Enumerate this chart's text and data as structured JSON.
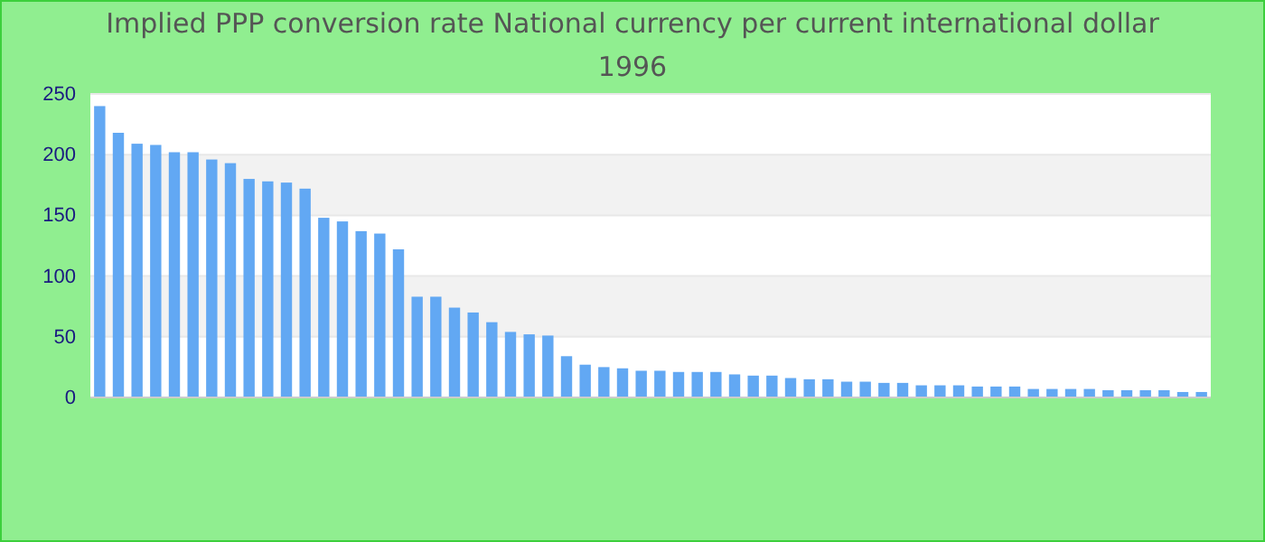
{
  "chart_data": {
    "type": "bar",
    "title": "Implied PPP conversion rate  National currency per current international dollar",
    "subtitle": "1996",
    "categories": [
      null,
      null,
      null,
      null,
      null,
      null,
      null,
      null,
      null,
      null,
      null,
      null,
      null,
      null,
      null,
      null,
      null,
      null,
      null,
      null,
      null,
      null,
      null,
      null,
      null,
      null,
      null,
      null,
      null,
      null,
      null,
      null,
      null,
      null,
      null,
      null,
      null,
      null,
      null,
      null,
      null,
      null,
      null,
      null,
      null,
      null,
      null,
      null,
      null,
      null,
      null,
      null,
      null,
      null,
      null,
      null,
      null,
      null,
      null,
      null
    ],
    "values": [
      240,
      218,
      209,
      208,
      202,
      202,
      196,
      193,
      180,
      178,
      177,
      172,
      148,
      145,
      137,
      135,
      122,
      83,
      83,
      74,
      70,
      62,
      54,
      52,
      51,
      34,
      27,
      25,
      24,
      22,
      22,
      21,
      21,
      21,
      19,
      18,
      18,
      16,
      15,
      15,
      13,
      13,
      12,
      12,
      10,
      10,
      10,
      9,
      9,
      9,
      7,
      7,
      7,
      7,
      6,
      6,
      6,
      6,
      4.5,
      4.5
    ],
    "color": "#62a8f3",
    "ylim": [
      0,
      250
    ],
    "yticks": [
      0,
      50,
      100,
      150,
      200,
      250
    ],
    "grid": "y"
  }
}
